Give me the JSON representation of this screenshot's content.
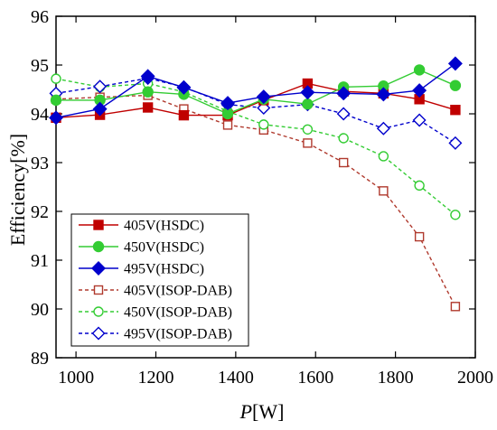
{
  "chart_data": {
    "type": "line",
    "xlabel_italic": "P",
    "xlabel_rest": "[W]",
    "ylabel": "Efficiency[%]",
    "xlim": [
      950,
      2000
    ],
    "ylim": [
      89,
      96
    ],
    "xticks": [
      1000,
      1200,
      1400,
      1600,
      1800,
      2000
    ],
    "yticks": [
      89,
      90,
      91,
      92,
      93,
      94,
      95,
      96
    ],
    "grid": false,
    "legend_position": "bottom-left",
    "series": [
      {
        "name": "405V(HSDC)",
        "color": "#c00000",
        "marker": "square-filled",
        "dash": "solid",
        "x": [
          950,
          1060,
          1180,
          1270,
          1380,
          1470,
          1580,
          1670,
          1770,
          1860,
          1950
        ],
        "y": [
          93.92,
          93.98,
          94.13,
          93.97,
          93.97,
          94.28,
          94.62,
          94.46,
          94.42,
          94.3,
          94.08
        ]
      },
      {
        "name": "450V(HSDC)",
        "color": "#33cc33",
        "marker": "circle-filled",
        "dash": "solid",
        "x": [
          950,
          1060,
          1180,
          1270,
          1380,
          1470,
          1580,
          1670,
          1770,
          1860,
          1950
        ],
        "y": [
          94.28,
          94.28,
          94.45,
          94.4,
          94.0,
          94.3,
          94.2,
          94.55,
          94.57,
          94.9,
          94.58
        ]
      },
      {
        "name": "495V(HSDC)",
        "color": "#0000cc",
        "marker": "diamond-filled",
        "dash": "solid",
        "x": [
          950,
          1060,
          1180,
          1270,
          1380,
          1470,
          1580,
          1670,
          1770,
          1860,
          1950
        ],
        "y": [
          93.92,
          94.1,
          94.77,
          94.54,
          94.22,
          94.35,
          94.44,
          94.42,
          94.4,
          94.48,
          95.03
        ]
      },
      {
        "name": "405V(ISOP-DAB)",
        "color": "#b03a2e",
        "marker": "square-open",
        "dash": "4,3",
        "x": [
          950,
          1060,
          1180,
          1270,
          1380,
          1470,
          1580,
          1670,
          1770,
          1860,
          1950
        ],
        "y": [
          94.3,
          94.34,
          94.38,
          94.1,
          93.77,
          93.67,
          93.4,
          93.0,
          92.42,
          91.48,
          90.05
        ]
      },
      {
        "name": "450V(ISOP-DAB)",
        "color": "#33cc33",
        "marker": "circle-open",
        "dash": "4,3",
        "x": [
          950,
          1060,
          1180,
          1270,
          1380,
          1470,
          1580,
          1670,
          1770,
          1860,
          1950
        ],
        "y": [
          94.72,
          94.55,
          94.62,
          94.45,
          94.05,
          93.78,
          93.68,
          93.5,
          93.13,
          92.53,
          91.93
        ]
      },
      {
        "name": "495V(ISOP-DAB)",
        "color": "#0000cc",
        "marker": "diamond-open",
        "dash": "4,3",
        "x": [
          950,
          1060,
          1180,
          1270,
          1380,
          1470,
          1580,
          1670,
          1770,
          1860,
          1950
        ],
        "y": [
          94.42,
          94.56,
          94.73,
          94.55,
          94.19,
          94.12,
          94.19,
          94.0,
          93.7,
          93.87,
          93.4
        ]
      }
    ]
  }
}
